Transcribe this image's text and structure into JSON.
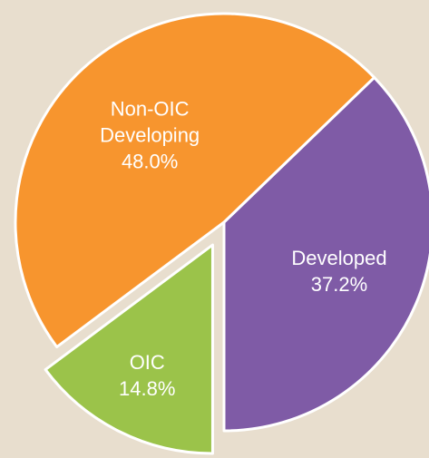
{
  "chart_data": {
    "type": "pie",
    "categories": [
      "Developed",
      "OIC",
      "Non-OIC Developing"
    ],
    "values": [
      37.2,
      14.8,
      48.0
    ],
    "value_labels": [
      "37.2%",
      "14.8%",
      "48.0%"
    ],
    "colors": [
      "#7f5ba6",
      "#9bc34a",
      "#f7952e"
    ],
    "explode": [
      false,
      true,
      false
    ]
  }
}
